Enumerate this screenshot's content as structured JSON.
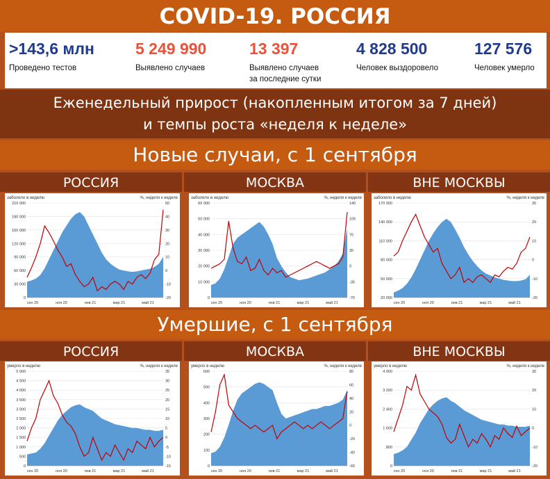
{
  "title": "COVID-19. РОССИЯ",
  "stats": [
    {
      "value": ">143,6 млн",
      "label": "Проведено тестов",
      "color": "#1f3b8c"
    },
    {
      "value": "5 249 990",
      "label": "Выявлено случаев",
      "color": "#e8533a"
    },
    {
      "value": "13 397",
      "label": "Выявлено случаев\nза последние сутки",
      "color": "#e8533a"
    },
    {
      "value": "4 828 500",
      "label": "Человек выздоровело",
      "color": "#1f3b8c"
    },
    {
      "value": "127 576",
      "label": "Человек умерло",
      "color": "#1f3b8c"
    }
  ],
  "subtitle_line1": "Еженедельный прирост (накопленным итогом за 7 дней)",
  "subtitle_line2": "и темпы роста «неделя к неделе»",
  "section_cases": "Новые случаи, с 1 сентября",
  "section_deaths": "Умершие, с 1 сентября",
  "region_headers": [
    "РОССИЯ",
    "МОСКВА",
    "ВНЕ МОСКВЫ"
  ],
  "colors": {
    "area": "#5b9bd5",
    "line": "#c00000",
    "axis_text": "#333333"
  },
  "chart_data": [
    {
      "type": "area",
      "region": "РОССИЯ",
      "group": "cases",
      "y1label": "заболело в неделю",
      "y2label": "%, неделя к неделе",
      "y1lim": [
        0,
        210000
      ],
      "y2lim": [
        -20,
        50
      ],
      "y1ticks": [
        "0",
        "30 000",
        "60 000",
        "90 000",
        "120 000",
        "150 000",
        "180 000",
        "210 000"
      ],
      "y2ticks": [
        "-20",
        "-10",
        "0",
        "10",
        "20",
        "30",
        "40",
        "50"
      ],
      "xticks": [
        "сен 20",
        "ноя 20",
        "янв 21",
        "мар 21",
        "май 21"
      ],
      "area_values": [
        35000,
        38000,
        42000,
        50000,
        65000,
        85000,
        105000,
        125000,
        145000,
        160000,
        175000,
        185000,
        190000,
        180000,
        160000,
        140000,
        120000,
        100000,
        85000,
        75000,
        68000,
        62000,
        60000,
        58000,
        57000,
        58000,
        60000,
        62000,
        64000,
        68000,
        75000,
        90000
      ],
      "line_values": [
        -5,
        2,
        10,
        20,
        33,
        28,
        22,
        15,
        10,
        3,
        5,
        -3,
        -8,
        -12,
        -10,
        -5,
        -15,
        -12,
        -14,
        -10,
        -8,
        -10,
        -14,
        -8,
        -10,
        -5,
        -3,
        -6,
        -2,
        8,
        12,
        45
      ]
    },
    {
      "type": "area",
      "region": "МОСКВА",
      "group": "cases",
      "y1label": "заболело в неделю",
      "y2label": "%, неделя к неделе",
      "y1lim": [
        0,
        60000
      ],
      "y2lim": [
        -70,
        140
      ],
      "y1ticks": [
        "0",
        "10 000",
        "20 000",
        "30 000",
        "40 000",
        "50 000",
        "60 000"
      ],
      "y2ticks": [
        "-70",
        "-35",
        "0",
        "35",
        "70",
        "105",
        "140"
      ],
      "xticks": [
        "сен 20",
        "ноя 20",
        "янв 21",
        "мар 21",
        "май 21"
      ],
      "area_values": [
        8000,
        9000,
        12000,
        18000,
        26000,
        34000,
        38000,
        40000,
        42000,
        44000,
        46000,
        48000,
        45000,
        40000,
        34000,
        25000,
        20000,
        16000,
        13000,
        12000,
        11000,
        11500,
        12000,
        13000,
        14000,
        15000,
        16000,
        18000,
        20000,
        23000,
        28000,
        44000
      ],
      "line_values": [
        -5,
        0,
        5,
        15,
        100,
        40,
        10,
        5,
        20,
        -10,
        -5,
        15,
        -10,
        -20,
        -5,
        -15,
        -10,
        -25,
        -20,
        -15,
        -10,
        -5,
        0,
        5,
        10,
        5,
        0,
        -5,
        0,
        5,
        20,
        120
      ]
    },
    {
      "type": "area",
      "region": "ВНЕ МОСКВЫ",
      "group": "cases",
      "y1label": "заболело в неделю",
      "y2label": "%, неделя к неделе",
      "y1lim": [
        20000,
        170000
      ],
      "y2lim": [
        -20,
        30
      ],
      "y1ticks": [
        "20 000",
        "50 000",
        "80 000",
        "110 000",
        "140 000",
        "170 000"
      ],
      "y2ticks": [
        "-20",
        "-10",
        "0",
        "10",
        "20",
        "30"
      ],
      "xticks": [
        "сен 20",
        "ноя 20",
        "янв 21",
        "мар 21",
        "май 21"
      ],
      "area_values": [
        28000,
        31000,
        35000,
        42000,
        52000,
        65000,
        80000,
        95000,
        110000,
        122000,
        132000,
        140000,
        145000,
        140000,
        128000,
        115000,
        100000,
        88000,
        78000,
        70000,
        63000,
        58000,
        55000,
        52000,
        50000,
        48000,
        47000,
        46000,
        46000,
        47000,
        49000,
        56000
      ],
      "line_values": [
        2,
        4,
        10,
        15,
        20,
        24,
        18,
        12,
        8,
        4,
        6,
        -2,
        -6,
        -10,
        -8,
        -4,
        -12,
        -10,
        -12,
        -9,
        -8,
        -10,
        -12,
        -8,
        -9,
        -6,
        -4,
        -5,
        -2,
        4,
        6,
        12
      ]
    },
    {
      "type": "area",
      "region": "РОССИЯ",
      "group": "deaths",
      "y1label": "умерло в неделю",
      "y2label": "%, неделя к неделе",
      "y1lim": [
        0,
        5000
      ],
      "y2lim": [
        -15,
        35
      ],
      "y1ticks": [
        "0",
        "500",
        "1 000",
        "1 500",
        "2 000",
        "2 500",
        "3 000",
        "3 500",
        "4 000",
        "4 500",
        "5 000"
      ],
      "y2ticks": [
        "-15",
        "-10",
        "-5",
        "0",
        "5",
        "10",
        "15",
        "20",
        "25",
        "30",
        "35"
      ],
      "xticks": [
        "сен 20",
        "ноя 20",
        "янв 21",
        "мар 21",
        "май 21"
      ],
      "area_values": [
        600,
        650,
        700,
        900,
        1200,
        1600,
        2000,
        2400,
        2700,
        2900,
        3100,
        3200,
        3250,
        3100,
        3000,
        2900,
        2700,
        2500,
        2400,
        2300,
        2200,
        2150,
        2100,
        2050,
        2000,
        2000,
        1950,
        1900,
        1900,
        1850,
        1850,
        1900
      ],
      "line_values": [
        -2,
        5,
        10,
        20,
        25,
        30,
        22,
        18,
        12,
        8,
        6,
        2,
        -5,
        -10,
        -8,
        0,
        -6,
        -12,
        -8,
        -10,
        -4,
        -8,
        -12,
        -6,
        -8,
        -2,
        -4,
        -6,
        0,
        -5,
        -2,
        0
      ]
    },
    {
      "type": "area",
      "region": "МОСКВА",
      "group": "deaths",
      "y1label": "умерло в неделю",
      "y2label": "%, неделя к неделе",
      "y1lim": [
        0,
        600
      ],
      "y2lim": [
        -60,
        80
      ],
      "y1ticks": [
        "0",
        "100",
        "200",
        "300",
        "400",
        "500",
        "600"
      ],
      "y2ticks": [
        "-60",
        "-40",
        "-20",
        "0",
        "20",
        "40",
        "60",
        "80"
      ],
      "xticks": [
        "сен 20",
        "ноя 20",
        "янв 21",
        "мар 21",
        "май 21"
      ],
      "area_values": [
        80,
        90,
        120,
        180,
        260,
        350,
        420,
        460,
        480,
        500,
        520,
        530,
        520,
        500,
        480,
        400,
        330,
        300,
        310,
        320,
        330,
        340,
        350,
        360,
        360,
        370,
        380,
        380,
        390,
        400,
        420,
        480
      ],
      "line_values": [
        -10,
        20,
        60,
        75,
        30,
        20,
        10,
        5,
        0,
        -5,
        0,
        -5,
        -10,
        -5,
        0,
        -20,
        -10,
        -5,
        0,
        5,
        0,
        -5,
        0,
        -5,
        0,
        5,
        0,
        -5,
        0,
        5,
        10,
        50
      ]
    },
    {
      "type": "area",
      "region": "ВНЕ МОСКВЫ",
      "group": "deaths",
      "y1label": "умерло в неделю",
      "y2label": "%, неделя к неделе",
      "y1lim": [
        0,
        4000
      ],
      "y2lim": [
        -20,
        30
      ],
      "y1ticks": [
        "0",
        "800",
        "1 600",
        "2 400",
        "3 200",
        "4 000"
      ],
      "y2ticks": [
        "-20",
        "-10",
        "0",
        "10",
        "20",
        "30"
      ],
      "xticks": [
        "сен 20",
        "ноя 20",
        "янв 21",
        "мар 21",
        "май 21"
      ],
      "area_values": [
        500,
        550,
        650,
        800,
        1100,
        1400,
        1800,
        2100,
        2400,
        2600,
        2750,
        2850,
        2900,
        2750,
        2650,
        2500,
        2350,
        2250,
        2150,
        2050,
        1950,
        1900,
        1850,
        1800,
        1750,
        1750,
        1700,
        1700,
        1650,
        1650,
        1650,
        1700
      ],
      "line_values": [
        -2,
        5,
        12,
        22,
        20,
        28,
        18,
        14,
        10,
        8,
        6,
        2,
        -5,
        -8,
        -6,
        2,
        -4,
        -10,
        -6,
        -8,
        -3,
        -6,
        -10,
        -4,
        -6,
        0,
        -3,
        -5,
        1,
        -4,
        -2,
        0
      ]
    }
  ]
}
